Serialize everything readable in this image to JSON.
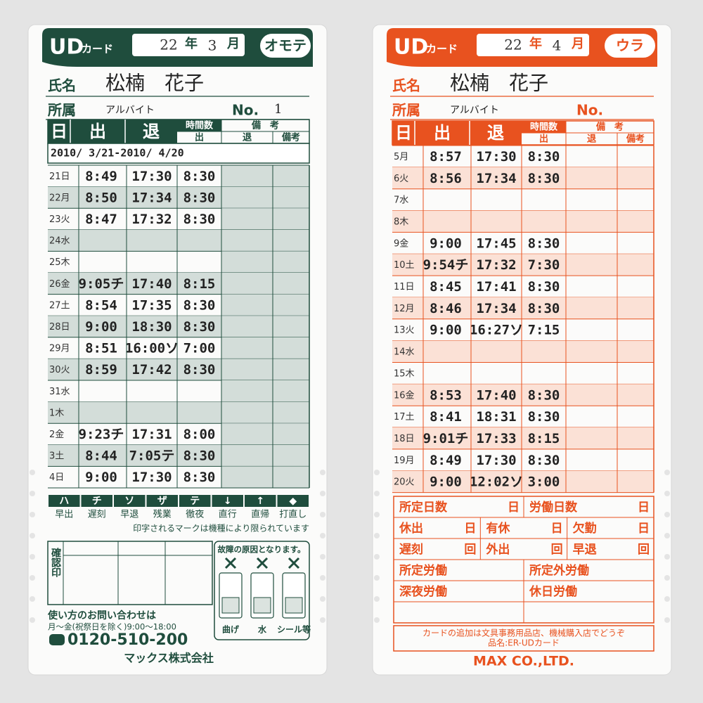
{
  "cards": [
    {
      "brand": "UD",
      "brand_suffix": "カード",
      "year": "22",
      "year_unit": "年",
      "month": "3",
      "month_unit": "月",
      "side": "オモテ",
      "name_label": "氏名",
      "name": "松楠　花子",
      "dept_label": "所属",
      "dept": "アルバイト",
      "no_label": "No.",
      "no": "1",
      "columns": {
        "day": "日",
        "in": "出",
        "out": "退",
        "hours": "時間数",
        "hours_sub": "出",
        "notes": "備　考",
        "notes_sub_1": "退",
        "notes_sub_2": "備考"
      },
      "period": "2010/ 3/21-2010/ 4/20",
      "rows": [
        {
          "day": "21日",
          "in": "8:49",
          "out": "17:30",
          "hours": "8:30"
        },
        {
          "day": "22月",
          "in": "8:50",
          "out": "17:34",
          "hours": "8:30"
        },
        {
          "day": "23火",
          "in": "8:47",
          "out": "17:32",
          "hours": "8:30"
        },
        {
          "day": "24水"
        },
        {
          "day": "25木"
        },
        {
          "day": "26金",
          "in": "9:05チ",
          "out": "17:40",
          "hours": "8:15"
        },
        {
          "day": "27土",
          "in": "8:54",
          "out": "17:35",
          "hours": "8:30"
        },
        {
          "day": "28日",
          "in": "9:00",
          "out": "18:30",
          "hours": "8:30"
        },
        {
          "day": "29月",
          "in": "8:51",
          "out": "16:00ソ",
          "hours": "7:00"
        },
        {
          "day": "30火",
          "in": "8:59",
          "out": "17:42",
          "hours": "8:30"
        },
        {
          "day": "31水"
        },
        {
          "day": "1木"
        },
        {
          "day": "2金",
          "in": "9:23チ",
          "out": "17:31",
          "hours": "8:00"
        },
        {
          "day": "3土",
          "in": "8:44",
          "out": "7:05テ",
          "hours": "8:30"
        },
        {
          "day": "4日",
          "in": "9:00",
          "out": "17:30",
          "hours": "8:30"
        }
      ],
      "marks": [
        {
          "symbol": "ハ",
          "label": "早出"
        },
        {
          "symbol": "チ",
          "label": "遅刻"
        },
        {
          "symbol": "ソ",
          "label": "早退"
        },
        {
          "symbol": "ザ",
          "label": "残業"
        },
        {
          "symbol": "テ",
          "label": "徹夜"
        },
        {
          "symbol": "↓",
          "label": "直行"
        },
        {
          "symbol": "↑",
          "label": "直帰"
        },
        {
          "symbol": "◆",
          "label": "打直し"
        }
      ],
      "marks_note": "印字されるマークは機種により限られています",
      "stamp": "確認印",
      "caution": {
        "title": "故障の原因となります。",
        "items": [
          "曲げ",
          "水",
          "シール等"
        ]
      },
      "contact": {
        "line1": "使い方のお問い合わせは",
        "hours": "月～金(祝祭日を除く)9:00～18:00",
        "phone": "0120-510-200",
        "company": "マックス株式会社"
      }
    },
    {
      "brand": "UD",
      "brand_suffix": "カード",
      "year": "22",
      "year_unit": "年",
      "month": "4",
      "month_unit": "月",
      "side": "ウラ",
      "name_label": "氏名",
      "name": "松楠　花子",
      "dept_label": "所属",
      "dept": "アルバイト",
      "no_label": "No.",
      "columns": {
        "day": "日",
        "in": "出",
        "out": "退",
        "hours": "時間数",
        "hours_sub": "出",
        "notes": "備　考",
        "notes_sub_1": "退",
        "notes_sub_2": "備考"
      },
      "rows": [
        {
          "day": "5月",
          "in": "8:57",
          "out": "17:30",
          "hours": "8:30"
        },
        {
          "day": "6火",
          "in": "8:56",
          "out": "17:34",
          "hours": "8:30"
        },
        {
          "day": "7水"
        },
        {
          "day": "8木"
        },
        {
          "day": "9金",
          "in": "9:00",
          "out": "17:45",
          "hours": "8:30"
        },
        {
          "day": "10土",
          "in": "9:54チ",
          "out": "17:32",
          "hours": "7:30"
        },
        {
          "day": "11日",
          "in": "8:45",
          "out": "17:41",
          "hours": "8:30"
        },
        {
          "day": "12月",
          "in": "8:46",
          "out": "17:34",
          "hours": "8:30"
        },
        {
          "day": "13火",
          "in": "9:00",
          "out": "16:27ソ",
          "hours": "7:15"
        },
        {
          "day": "14水"
        },
        {
          "day": "15木"
        },
        {
          "day": "16金",
          "in": "8:53",
          "out": "17:40",
          "hours": "8:30"
        },
        {
          "day": "17土",
          "in": "8:41",
          "out": "18:31",
          "hours": "8:30"
        },
        {
          "day": "18日",
          "in": "9:01チ",
          "out": "17:33",
          "hours": "8:15"
        },
        {
          "day": "19月",
          "in": "8:49",
          "out": "17:30",
          "hours": "8:30"
        },
        {
          "day": "20火",
          "in": "9:00",
          "out": "12:02ソ",
          "hours": "3:00"
        }
      ],
      "summary": [
        [
          {
            "label": "所定日数",
            "unit": "日"
          },
          {
            "label": "労働日数",
            "unit": "日"
          }
        ],
        [
          {
            "label": "休出",
            "unit": "日"
          },
          {
            "label": "有休",
            "unit": "日"
          },
          {
            "label": "欠勤",
            "unit": "日"
          }
        ],
        [
          {
            "label": "遅刻",
            "unit": "回"
          },
          {
            "label": "外出",
            "unit": "回"
          },
          {
            "label": "早退",
            "unit": "回"
          }
        ],
        [
          {
            "label": "所定労働"
          },
          {
            "label": "所定外労働"
          }
        ],
        [
          {
            "label": "深夜労働"
          },
          {
            "label": "休日労働"
          }
        ]
      ],
      "footer": {
        "line1": "カードの追加は文具事務用品店、機械購入店でどうぞ",
        "line2": "品名:ER-UDカード",
        "maker": "MAX CO.,LTD."
      }
    }
  ]
}
